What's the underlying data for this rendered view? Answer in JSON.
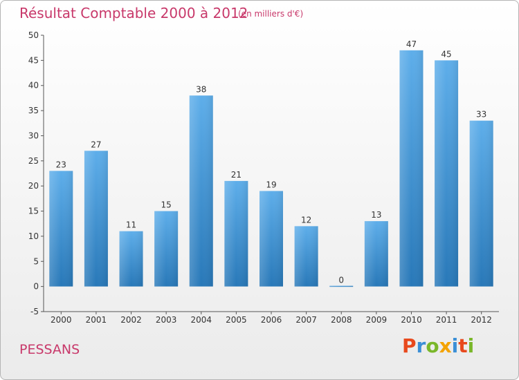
{
  "header": {
    "title": "Résultat Comptable 2000 à 2012",
    "subtitle": "(en milliers d'€)"
  },
  "footer": {
    "town": "PESSANS",
    "logo": "Proxiti",
    "logo_colors": [
      "#e8491d",
      "#3b8fd6",
      "#7ab72a",
      "#f4a300",
      "#3b8fd6",
      "#e8491d",
      "#7ab72a"
    ]
  },
  "colors": {
    "bar_top": "#5eaeea",
    "bar_bottom": "#2878b8",
    "title": "#c8386a"
  },
  "chart_data": {
    "type": "bar",
    "categories": [
      "2000",
      "2001",
      "2002",
      "2003",
      "2004",
      "2005",
      "2006",
      "2007",
      "2008",
      "2009",
      "2010",
      "2011",
      "2012"
    ],
    "values": [
      23,
      27,
      11,
      15,
      38,
      21,
      19,
      12,
      0,
      13,
      47,
      45,
      33
    ],
    "ylim": [
      -5,
      50
    ],
    "yticks": [
      -5,
      0,
      5,
      10,
      15,
      20,
      25,
      30,
      35,
      40,
      45,
      50
    ],
    "grid": false,
    "legend": "none"
  }
}
